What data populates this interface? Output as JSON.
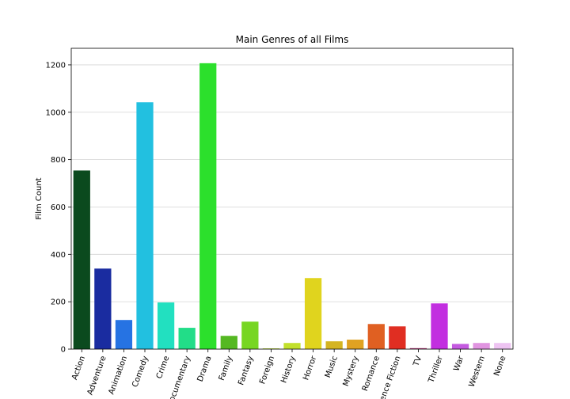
{
  "chart_data": {
    "type": "bar",
    "title": "Main Genres of all Films",
    "xlabel": "",
    "ylabel": "Film Count",
    "ylim": [
      0,
      1270
    ],
    "yticks": [
      0,
      200,
      400,
      600,
      800,
      1000,
      1200
    ],
    "grid": "horizontal",
    "categories": [
      "Action",
      "Adventure",
      "Animation",
      "Comedy",
      "Crime",
      "Documentary",
      "Drama",
      "Family",
      "Fantasy",
      "Foreign",
      "History",
      "Horror",
      "Music",
      "Mystery",
      "Romance",
      "Science Fiction",
      "TV",
      "Thriller",
      "War",
      "Western",
      "None"
    ],
    "values": [
      754,
      340,
      123,
      1042,
      197,
      90,
      1207,
      56,
      116,
      3,
      26,
      300,
      33,
      40,
      106,
      96,
      4,
      193,
      22,
      26,
      26
    ],
    "colors": [
      "#0b4a1e",
      "#1a2ca0",
      "#2673e3",
      "#22c0e0",
      "#22e0c0",
      "#22dd88",
      "#2ce02c",
      "#55b822",
      "#77d622",
      "#b4d422",
      "#c2e02c",
      "#e0d41e",
      "#d4b422",
      "#e0a222",
      "#e06022",
      "#e02e22",
      "#a82a6e",
      "#c22ee0",
      "#c45ae0",
      "#e094e0",
      "#eec4f2"
    ]
  }
}
